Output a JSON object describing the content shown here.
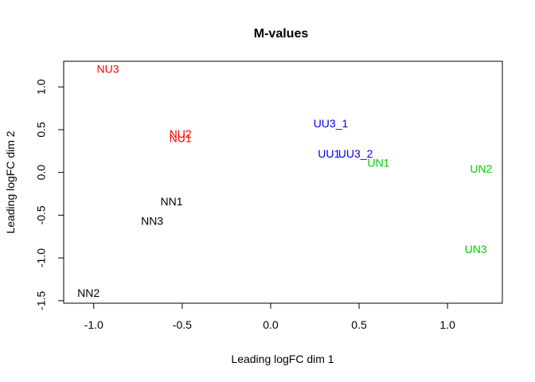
{
  "chart_data": {
    "type": "scatter",
    "title": "M-values",
    "xlabel": "Leading logFC dim 1",
    "ylabel": "Leading logFC dim 2",
    "xlim": [
      -1.17,
      1.31
    ],
    "ylim": [
      -1.53,
      1.3
    ],
    "x_ticks": [
      -1.0,
      -0.5,
      0.0,
      0.5,
      1.0
    ],
    "x_tick_labels": [
      "-1.0",
      "-0.5",
      "0.0",
      "0.5",
      "1.0"
    ],
    "y_ticks": [
      -1.5,
      -1.0,
      -0.5,
      0.0,
      0.5,
      1.0
    ],
    "y_tick_labels": [
      "-1.5",
      "-1.0",
      "-0.5",
      "0.0",
      "0.5",
      "1.0"
    ],
    "grid": false,
    "legend": "none",
    "marker": "text-labels",
    "points": [
      {
        "label": "NU3",
        "x": -0.92,
        "y": 1.2,
        "color": "#ff0000"
      },
      {
        "label": "NU2",
        "x": -0.51,
        "y": 0.44,
        "color": "#ff0000"
      },
      {
        "label": "NU1",
        "x": -0.51,
        "y": 0.39,
        "color": "#ff0000"
      },
      {
        "label": "UU3_1",
        "x": 0.34,
        "y": 0.56,
        "color": "#0000ff"
      },
      {
        "label": "UU1",
        "x": 0.33,
        "y": 0.21,
        "color": "#0000ff"
      },
      {
        "label": "UU3_2",
        "x": 0.48,
        "y": 0.21,
        "color": "#0000ff"
      },
      {
        "label": "UN1",
        "x": 0.61,
        "y": 0.1,
        "color": "#00cd00"
      },
      {
        "label": "UN2",
        "x": 1.19,
        "y": 0.03,
        "color": "#00cd00"
      },
      {
        "label": "UN3",
        "x": 1.16,
        "y": -0.91,
        "color": "#00cd00"
      },
      {
        "label": "NN1",
        "x": -0.56,
        "y": -0.35,
        "color": "#000000"
      },
      {
        "label": "NN3",
        "x": -0.67,
        "y": -0.58,
        "color": "#000000"
      },
      {
        "label": "NN2",
        "x": -1.03,
        "y": -1.42,
        "color": "#000000"
      }
    ]
  }
}
